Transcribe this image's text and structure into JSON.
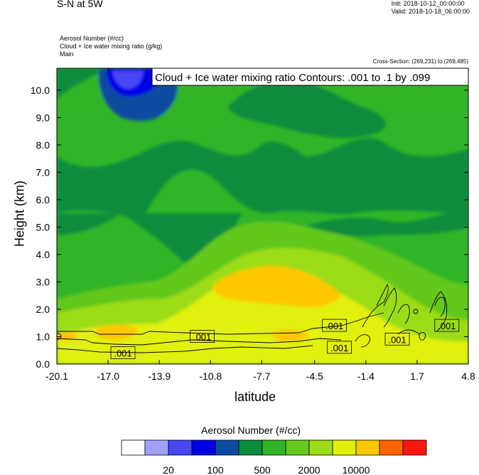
{
  "header": {
    "title": "S-N at 5W",
    "init": "Init: 2018-10-12_00:00:00",
    "valid": "Valid: 2018-10-18_06:00:00",
    "field1": "Aerosol Number   (#/cc)",
    "field2": "Cloud + Ice water mixing ratio   (g/kg)",
    "field3": "Main",
    "cross_section": "Cross-Section: (269,231) to (269,485)"
  },
  "chart_data": {
    "type": "heatmap",
    "title": "",
    "xlabel": "latitude",
    "ylabel": "Height (km)",
    "x_ticks": [
      "-20.1",
      "-17.0",
      "-13.9",
      "-10.8",
      "-7.7",
      "-4.5",
      "-1.4",
      "1.7",
      "4.8"
    ],
    "y_ticks": [
      "0.0",
      "1.0",
      "2.0",
      "3.0",
      "4.0",
      "5.0",
      "6.0",
      "7.0",
      "8.0",
      "9.0",
      "10.0"
    ],
    "xlim": [
      -20.1,
      4.8
    ],
    "ylim": [
      0,
      10.8
    ],
    "contour_info": "Cloud + Ice water mixing ratio Contours: .001 to .1 by .099",
    "contour_labels": [
      {
        "x": -16.1,
        "y": 0.4,
        "text": ".001"
      },
      {
        "x": -11.3,
        "y": 1.0,
        "text": ".001"
      },
      {
        "x": -3.3,
        "y": 1.4,
        "text": ".001"
      },
      {
        "x": -3.0,
        "y": 0.6,
        "text": ".001"
      },
      {
        "x": 0.5,
        "y": 0.9,
        "text": ".001"
      },
      {
        "x": 3.5,
        "y": 1.4,
        "text": ".001"
      }
    ],
    "colorbar": {
      "title": "Aerosol Number  (#/cc)",
      "colors": [
        "#ffffff",
        "#a0a0ff",
        "#4646f5",
        "#0000e6",
        "#0a4ba0",
        "#0a8c3c",
        "#32b428",
        "#64c81e",
        "#9bdc14",
        "#e1f00a",
        "#ffc800",
        "#ff6400",
        "#ff1414"
      ],
      "labels": [
        "20",
        "100",
        "500",
        "2000",
        "10000"
      ]
    }
  }
}
